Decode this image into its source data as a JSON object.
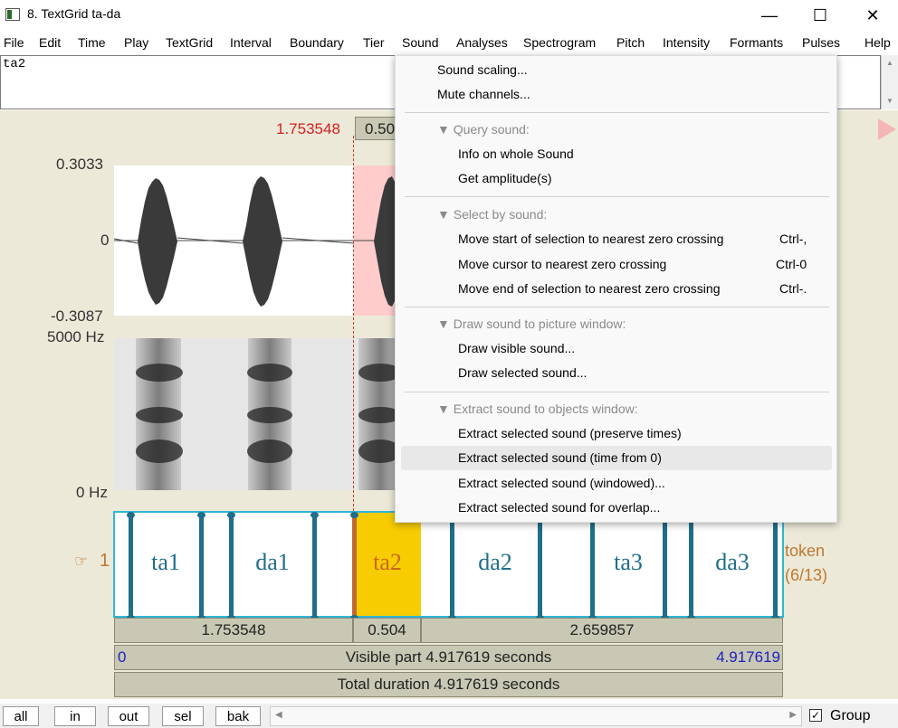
{
  "window": {
    "title": "8. TextGrid ta-da",
    "minimize": "—",
    "maximize": "☐",
    "close": "✕"
  },
  "menubar": [
    "File",
    "Edit",
    "Time",
    "Play",
    "TextGrid",
    "Interval",
    "Boundary",
    "Tier",
    "Sound",
    "Analyses",
    "Spectrogram",
    "Pitch",
    "Intensity",
    "Formants",
    "Pulses",
    "Help"
  ],
  "textbox": {
    "value": "ta2"
  },
  "editor": {
    "cursor_time": "1.753548",
    "cursor_dur": "0.504",
    "wave_max": "0.3033",
    "wave_zero": "0",
    "wave_min": "-0.3087",
    "spec_top": "5000 Hz",
    "spec_bottom": "0 Hz",
    "tier_number": "1",
    "tier_name": "token",
    "tier_count": "(6/13)",
    "intervals": [
      "ta1",
      "da1",
      "ta2",
      "da2",
      "ta3",
      "da3"
    ],
    "dur_left": "1.753548",
    "dur_sel": "0.504",
    "dur_right": "2.659857",
    "visible_start": "0",
    "visible_text": "Visible part 4.917619 seconds",
    "visible_end": "4.917619",
    "total_text": "Total duration 4.917619 seconds"
  },
  "bottom": {
    "buttons": [
      "all",
      "in",
      "out",
      "sel",
      "bak"
    ],
    "group_label": "Group",
    "group_checked": true
  },
  "dropdown": {
    "scaling": "Sound scaling...",
    "mute": "Mute channels...",
    "query_hdr": "▼ Query sound:",
    "info": "Info on whole Sound",
    "amp": "Get amplitude(s)",
    "select_hdr": "▼ Select by sound:",
    "move_start": "Move start of selection to nearest zero crossing",
    "move_start_key": "Ctrl-,",
    "move_cursor": "Move cursor to nearest zero crossing",
    "move_cursor_key": "Ctrl-0",
    "move_end": "Move end of selection to nearest zero crossing",
    "move_end_key": "Ctrl-.",
    "draw_hdr": "▼ Draw sound to picture window:",
    "draw_visible": "Draw visible sound...",
    "draw_selected": "Draw selected sound...",
    "extract_hdr": "▼ Extract sound to objects window:",
    "ex_preserve": "Extract selected sound (preserve times)",
    "ex_zero": "Extract selected sound (time from 0)",
    "ex_windowed": "Extract selected sound (windowed)...",
    "ex_overlap": "Extract selected sound for overlap..."
  },
  "colors": {
    "selection": "#f7cc00",
    "tier_border": "#30b6d8",
    "cursor": "#c0392b",
    "interval_text": "#1f6e8a"
  }
}
